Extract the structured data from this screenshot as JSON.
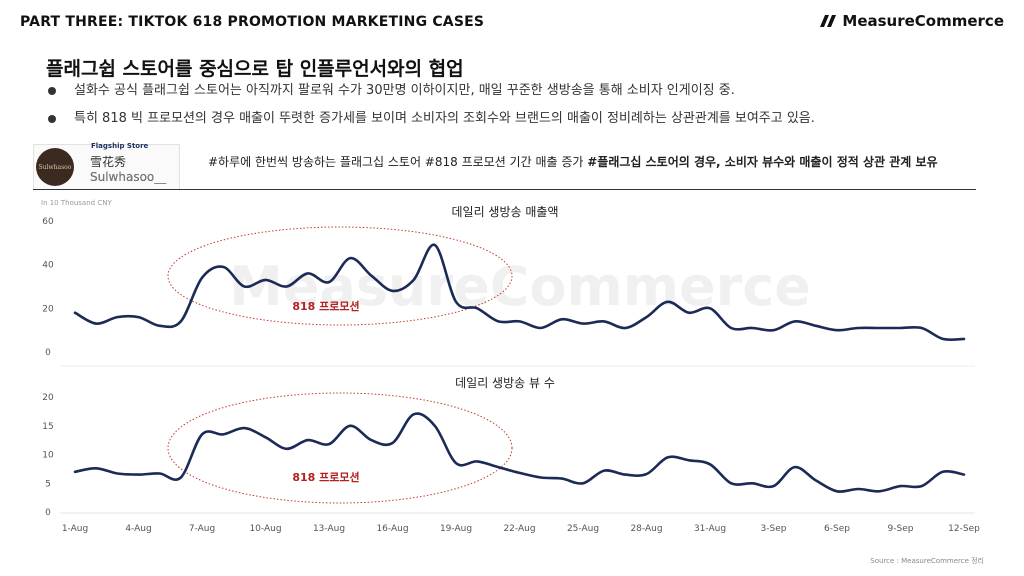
{
  "header": {
    "part_title": "PART THREE: TIKTOK 618 PROMOTION MARKETING CASES",
    "brand_name": "MeasureCommerce"
  },
  "headline": "플래그쉽 스토어를 중심으로 탑 인플루언서와의 협업",
  "bullets": [
    "설화수 공식 플래그쉽 스토어는 아직까지 팔로워 수가 30만명 이하이지만, 매일 꾸준한 생방송을 통해 소비자 인게이징 중.",
    "특히 818 빅 프로모션의 경우 매출이 뚜렷한 증가세를 보이며 소비자의 조회수와 브랜드의 매출이 정비례하는 상관관계를 보여주고 있음."
  ],
  "store": {
    "badge": "Flagship Store",
    "name": "雪花秀Sulwhasoo",
    "handle": "Sulwhasoo__",
    "logo_text": "Sulwhasoo"
  },
  "hashtag": {
    "plain": "#하루에 한번씩 방송하는 플래그십 스토어 #818 프로모션 기간 매출 증가 ",
    "bold": "#플래그십 스토어의 경우, 소비자 뷰수와 매출이 정적 상관 관계 보유"
  },
  "watermark": "MeasureCommerce",
  "source": "Source : MeasureCommerce 정리",
  "chart_data": [
    {
      "type": "line",
      "title": "데일리 생방송 매출액",
      "unit_label": "In 10 Thousand CNY",
      "ylim": [
        0,
        60
      ],
      "yticks": [
        0,
        20,
        40,
        60
      ],
      "series_color": "#1b2a56",
      "annotation": "818 프로모션",
      "values": [
        18,
        13,
        16,
        16,
        12,
        14,
        34,
        39,
        30,
        33,
        30,
        36,
        32,
        43,
        35,
        28,
        33,
        49,
        23,
        20,
        14,
        14,
        11,
        15,
        13,
        14,
        11,
        16,
        23,
        18,
        20,
        11,
        11,
        10,
        14,
        12,
        10,
        11,
        11,
        11,
        11,
        6,
        6
      ]
    },
    {
      "type": "line",
      "title": "데일리 생방송 뷰 수",
      "ylim": [
        0,
        20
      ],
      "yticks": [
        0,
        5,
        10,
        15,
        20
      ],
      "series_color": "#1b2a56",
      "annotation": "818 프로모션",
      "x_labels": [
        "1-Aug",
        "4-Aug",
        "7-Aug",
        "10-Aug",
        "13-Aug",
        "16-Aug",
        "19-Aug",
        "22-Aug",
        "25-Aug",
        "28-Aug",
        "31-Aug",
        "3-Sep",
        "6-Sep",
        "9-Sep",
        "12-Sep"
      ],
      "values": [
        7,
        7.6,
        6.7,
        6.5,
        6.7,
        6,
        13.5,
        13.5,
        14.6,
        13,
        11,
        12.5,
        11.8,
        15,
        12.5,
        12,
        17,
        15,
        8.5,
        8.8,
        7.8,
        6.8,
        6,
        5.8,
        5,
        7.2,
        6.5,
        6.6,
        9.5,
        9,
        8.3,
        5,
        5,
        4.5,
        7.8,
        5.5,
        3.6,
        4,
        3.6,
        4.5,
        4.5,
        7,
        6.5
      ]
    }
  ]
}
